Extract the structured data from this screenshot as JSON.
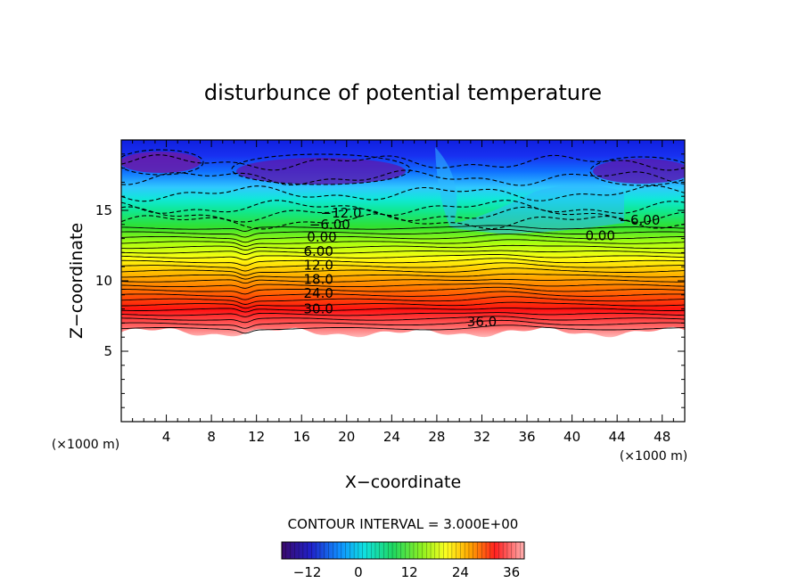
{
  "chart_data": {
    "type": "heatmap",
    "title": "disturbunce of potential temperature",
    "xlabel": "X−coordinate",
    "ylabel": "Z−coordinate",
    "x_unit_left": "(×1000 m)",
    "x_unit_right": "(×1000 m)",
    "xlim": [
      0,
      50
    ],
    "ylim": [
      0,
      20
    ],
    "x_ticks": [
      "4",
      "8",
      "12",
      "16",
      "20",
      "24",
      "28",
      "32",
      "36",
      "40",
      "44",
      "48"
    ],
    "y_ticks": [
      "5",
      "10",
      "15"
    ],
    "contour_interval_text": "CONTOUR INTERVAL = 3.000E+00",
    "contour_interval": 3,
    "value_range": [
      -18,
      39
    ],
    "contour_labels": [
      {
        "text": "−12.0",
        "x": 19.5,
        "z": 14.8
      },
      {
        "text": "−6.00",
        "x": 18.5,
        "z": 14.0
      },
      {
        "text": "0.00",
        "x": 17.8,
        "z": 13.1
      },
      {
        "text": "6.00",
        "x": 17.5,
        "z": 12.1
      },
      {
        "text": "12.0",
        "x": 17.5,
        "z": 11.1
      },
      {
        "text": "18.0",
        "x": 17.5,
        "z": 10.1
      },
      {
        "text": "24.0",
        "x": 17.5,
        "z": 9.1
      },
      {
        "text": "30.0",
        "x": 17.5,
        "z": 8.0
      },
      {
        "text": "36.0",
        "x": 32,
        "z": 7.1
      },
      {
        "text": "−6.00",
        "x": 46,
        "z": 14.3
      },
      {
        "text": "0.00",
        "x": 42.5,
        "z": 13.2
      }
    ],
    "colorbar": {
      "tick_labels": [
        "−12",
        "0",
        "12",
        "24",
        "36"
      ],
      "tick_values": [
        -12,
        0,
        12,
        24,
        36
      ],
      "range": [
        -18,
        39
      ]
    }
  }
}
